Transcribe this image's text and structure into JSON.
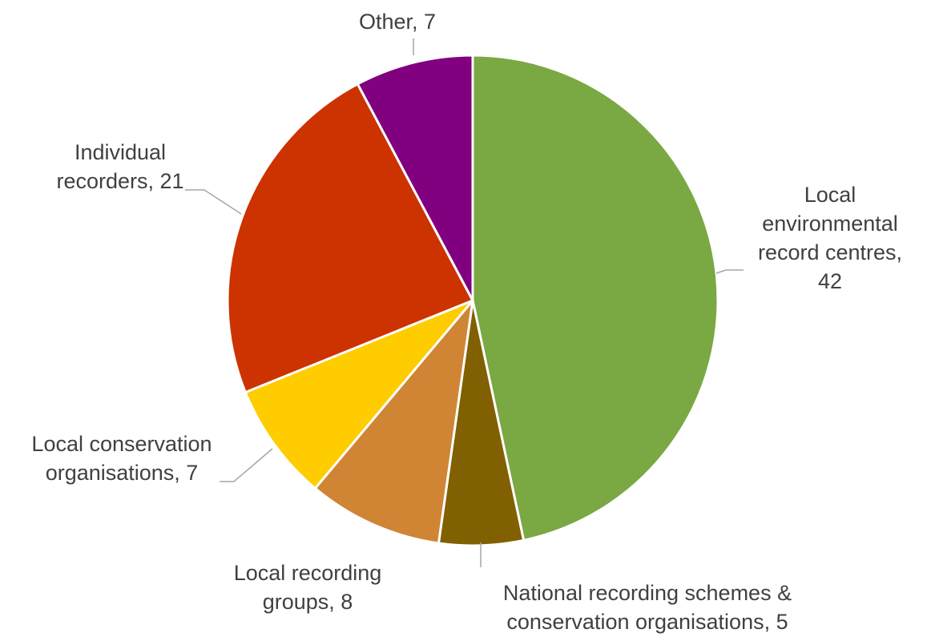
{
  "chart_data": {
    "type": "pie",
    "title": "",
    "start_angle_deg": 0,
    "direction": "clockwise",
    "slices": [
      {
        "label": "Local environmental record centres",
        "value": 42,
        "color": "#7AA843",
        "label_lines": [
          "Local",
          "environmental",
          "record centres,",
          "42"
        ]
      },
      {
        "label": "National recording schemes & conservation organisations",
        "value": 5,
        "color": "#806000",
        "label_lines": [
          "National recording schemes &",
          "conservation organisations, 5"
        ]
      },
      {
        "label": "Local recording groups",
        "value": 8,
        "color": "#D08535",
        "label_lines": [
          "Local recording",
          "groups, 8"
        ]
      },
      {
        "label": "Local conservation organisations",
        "value": 7,
        "color": "#FFCC00",
        "label_lines": [
          "Local conservation",
          "organisations, 7"
        ]
      },
      {
        "label": "Individual recorders",
        "value": 21,
        "color": "#CC3300",
        "label_lines": [
          "Individual",
          "recorders, 21"
        ]
      },
      {
        "label": "Other",
        "value": 7,
        "color": "#800080",
        "label_lines": [
          "Other, 7"
        ]
      }
    ],
    "legend": "none"
  }
}
